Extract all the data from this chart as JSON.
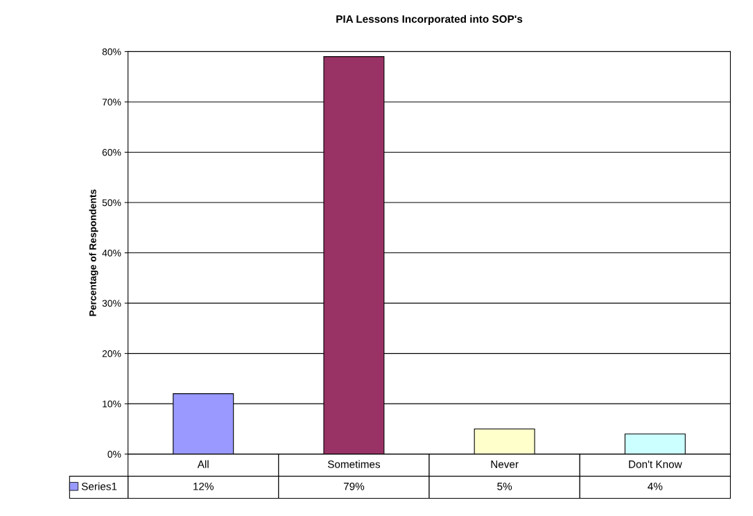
{
  "chart_data": {
    "type": "bar",
    "title": "PIA Lessons Incorporated into SOP's",
    "ylabel": "Percentage of Respondents",
    "categories": [
      "All",
      "Sometimes",
      "Never",
      "Don't Know"
    ],
    "series": [
      {
        "name": "Series1",
        "colors": [
          "#9999ff",
          "#993366",
          "#ffffcc",
          "#ccffff"
        ],
        "color": "#9999ff",
        "values": [
          12,
          79,
          5,
          4
        ],
        "value_labels": [
          "12%",
          "79%",
          "5%",
          "4%"
        ]
      }
    ],
    "ylim": [
      0,
      80
    ],
    "yticks": [
      {
        "value": 0,
        "label": "0%"
      },
      {
        "value": 10,
        "label": "10%"
      },
      {
        "value": 20,
        "label": "20%"
      },
      {
        "value": 30,
        "label": "30%"
      },
      {
        "value": 40,
        "label": "40%"
      },
      {
        "value": 50,
        "label": "50%"
      },
      {
        "value": 60,
        "label": "60%"
      },
      {
        "value": 70,
        "label": "70%"
      },
      {
        "value": 80,
        "label": "80%"
      }
    ],
    "grid": "y",
    "legend": "bottom left"
  }
}
